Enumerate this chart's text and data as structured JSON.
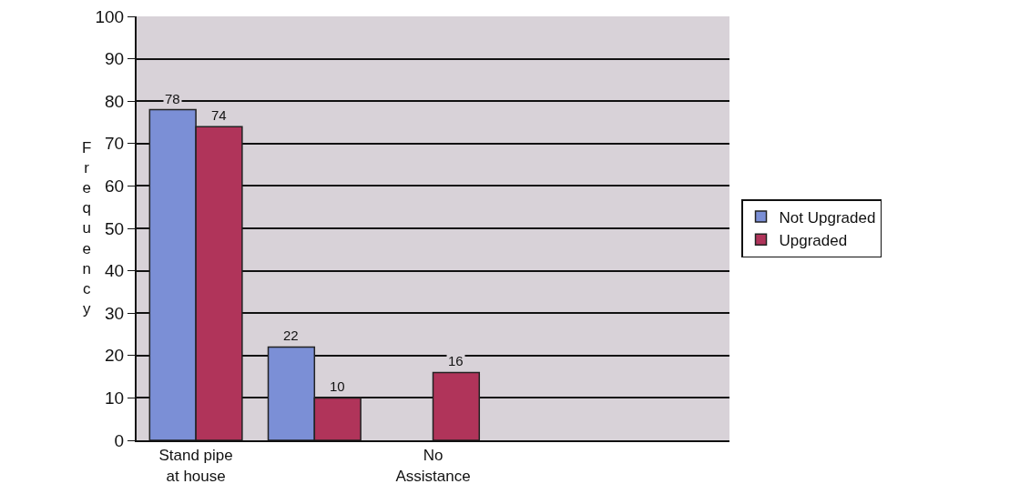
{
  "chart_data": {
    "type": "bar",
    "ylabel": "Frequency",
    "categories": [
      "Stand pipe at house",
      null,
      "No Assistance",
      null,
      null
    ],
    "series": [
      {
        "name": "Not Upgraded",
        "color": "#7b8fd6",
        "values": [
          78,
          22,
          null,
          null,
          null
        ]
      },
      {
        "name": "Upgraded",
        "color": "#b0345a",
        "values": [
          74,
          10,
          16,
          null,
          null
        ]
      }
    ],
    "ylim": [
      0,
      100
    ],
    "yticks": [
      0,
      10,
      20,
      30,
      40,
      50,
      60,
      70,
      80,
      90,
      100
    ],
    "grid": "y",
    "legend": "right",
    "data_labels": true
  }
}
